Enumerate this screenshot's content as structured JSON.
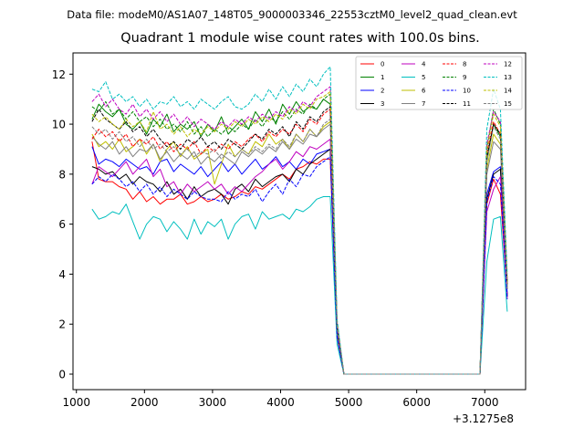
{
  "page": {
    "suptitle": "Data file: modeM0/AS1A07_148T05_9000003346_22553cztM0_level2_quad_clean.evt",
    "title": "Quadrant 1 module wise count rates with 100.0s bins.",
    "x_offset_label": "+3.1275e8"
  },
  "chart_data": {
    "type": "line",
    "title": "Quadrant 1 module wise count rates with 100.0s bins.",
    "xlabel": "",
    "ylabel": "",
    "x_offset": "+3.1275e8",
    "xlim": [
      950,
      7600
    ],
    "ylim": [
      -0.62,
      12.85
    ],
    "xticks": [
      1000,
      2000,
      3000,
      4000,
      5000,
      6000,
      7000
    ],
    "xtick_labels": [
      "1000",
      "2000",
      "3000",
      "4000",
      "5000",
      "6000",
      "7000"
    ],
    "yticks": [
      0,
      2,
      4,
      6,
      8,
      10,
      12
    ],
    "ytick_labels": [
      "0",
      "2",
      "4",
      "6",
      "8",
      "10",
      "12"
    ],
    "grid": false,
    "legend": {
      "placement": "top-right",
      "columns": 4
    },
    "x": [
      1230,
      1330,
      1430,
      1530,
      1630,
      1730,
      1830,
      1930,
      2030,
      2130,
      2230,
      2330,
      2430,
      2530,
      2630,
      2730,
      2830,
      2930,
      3030,
      3130,
      3230,
      3330,
      3430,
      3530,
      3630,
      3730,
      3830,
      3930,
      4030,
      4130,
      4230,
      4330,
      4430,
      4530,
      4630,
      4730,
      4830,
      4930,
      5030,
      5130,
      5230,
      5330,
      5430,
      5530,
      5630,
      5730,
      5830,
      5930,
      6030,
      6130,
      6230,
      6330,
      6430,
      6530,
      6630,
      6730,
      6830,
      6930,
      7030,
      7130,
      7230,
      7330
    ],
    "series": [
      {
        "name": "0",
        "color": "#ff0000",
        "dash": "solid",
        "values": [
          9.3,
          7.8,
          7.7,
          7.7,
          7.5,
          7.4,
          7.0,
          7.3,
          6.9,
          7.1,
          6.8,
          7.0,
          7.0,
          7.2,
          6.8,
          6.9,
          7.1,
          6.9,
          7.0,
          7.2,
          7.0,
          7.1,
          7.3,
          7.2,
          7.5,
          7.4,
          7.6,
          7.8,
          8.0,
          7.8,
          8.2,
          8.3,
          8.5,
          8.4,
          8.6,
          8.6,
          1.5,
          0.0,
          0.0,
          0.0,
          0.0,
          0.0,
          0.0,
          0.0,
          0.0,
          0.0,
          0.0,
          0.0,
          0.0,
          0.0,
          0.0,
          0.0,
          0.0,
          0.0,
          0.0,
          0.0,
          0.0,
          0.0,
          6.8,
          7.8,
          7.2,
          3.1
        ]
      },
      {
        "name": "1",
        "color": "#008000",
        "dash": "solid",
        "values": [
          10.2,
          10.8,
          10.5,
          10.3,
          10.6,
          10.0,
          9.8,
          10.1,
          9.6,
          10.2,
          9.9,
          10.4,
          9.7,
          10.0,
          9.8,
          10.1,
          9.5,
          10.0,
          9.7,
          10.3,
          9.6,
          9.9,
          10.2,
          9.8,
          10.5,
          10.1,
          10.6,
          10.0,
          10.8,
          10.4,
          10.9,
          10.5,
          10.7,
          10.6,
          11.0,
          10.8,
          2.0,
          0.0,
          0.0,
          0.0,
          0.0,
          0.0,
          0.0,
          0.0,
          0.0,
          0.0,
          0.0,
          0.0,
          0.0,
          0.0,
          0.0,
          0.0,
          0.0,
          0.0,
          0.0,
          0.0,
          0.0,
          0.0,
          8.5,
          10.0,
          9.5,
          3.4
        ]
      },
      {
        "name": "2",
        "color": "#0000ff",
        "dash": "solid",
        "values": [
          9.1,
          8.4,
          8.6,
          8.5,
          8.3,
          8.6,
          8.4,
          8.2,
          8.3,
          8.0,
          8.5,
          8.6,
          8.1,
          8.4,
          8.2,
          8.0,
          8.3,
          7.9,
          8.2,
          8.5,
          8.1,
          8.4,
          8.0,
          8.3,
          8.6,
          8.2,
          8.4,
          8.7,
          8.3,
          8.5,
          8.2,
          8.6,
          8.4,
          8.8,
          8.9,
          9.0,
          1.6,
          0.0,
          0.0,
          0.0,
          0.0,
          0.0,
          0.0,
          0.0,
          0.0,
          0.0,
          0.0,
          0.0,
          0.0,
          0.0,
          0.0,
          0.0,
          0.0,
          0.0,
          0.0,
          0.0,
          0.0,
          0.0,
          7.2,
          8.1,
          8.3,
          3.2
        ]
      },
      {
        "name": "3",
        "color": "#000000",
        "dash": "solid",
        "values": [
          8.3,
          8.2,
          8.0,
          8.1,
          7.8,
          8.0,
          7.6,
          7.9,
          7.7,
          7.6,
          7.3,
          7.7,
          7.2,
          7.4,
          7.0,
          7.5,
          7.1,
          7.3,
          7.4,
          7.2,
          6.8,
          7.4,
          7.6,
          7.3,
          7.8,
          7.5,
          7.7,
          7.9,
          8.0,
          7.7,
          8.2,
          8.0,
          8.4,
          8.6,
          8.8,
          9.0,
          1.6,
          0.0,
          0.0,
          0.0,
          0.0,
          0.0,
          0.0,
          0.0,
          0.0,
          0.0,
          0.0,
          0.0,
          0.0,
          0.0,
          0.0,
          0.0,
          0.0,
          0.0,
          0.0,
          0.0,
          0.0,
          0.0,
          7.0,
          8.0,
          8.2,
          3.1
        ]
      },
      {
        "name": "4",
        "color": "#bf00bf",
        "dash": "solid",
        "values": [
          7.6,
          8.3,
          8.1,
          7.9,
          8.2,
          8.5,
          8.0,
          8.3,
          8.6,
          7.9,
          8.2,
          7.5,
          7.7,
          7.2,
          7.6,
          7.3,
          7.5,
          7.7,
          7.4,
          7.6,
          7.2,
          7.5,
          7.3,
          7.6,
          7.9,
          8.1,
          8.4,
          8.6,
          8.2,
          8.5,
          8.9,
          8.7,
          9.1,
          9.0,
          9.2,
          9.4,
          1.7,
          0.0,
          0.0,
          0.0,
          0.0,
          0.0,
          0.0,
          0.0,
          0.0,
          0.0,
          0.0,
          0.0,
          0.0,
          0.0,
          0.0,
          0.0,
          0.0,
          0.0,
          0.0,
          0.0,
          0.0,
          0.0,
          6.5,
          7.4,
          7.9,
          3.0
        ]
      },
      {
        "name": "5",
        "color": "#00bfbf",
        "dash": "solid",
        "values": [
          6.6,
          6.2,
          6.3,
          6.5,
          6.4,
          6.8,
          6.1,
          5.4,
          6.0,
          6.3,
          6.2,
          5.7,
          6.1,
          5.8,
          5.4,
          6.2,
          5.6,
          6.1,
          5.9,
          6.2,
          5.4,
          6.0,
          6.3,
          6.4,
          5.8,
          6.5,
          6.2,
          6.3,
          6.4,
          6.2,
          6.6,
          6.5,
          6.7,
          7.0,
          7.1,
          7.1,
          1.2,
          0.0,
          0.0,
          0.0,
          0.0,
          0.0,
          0.0,
          0.0,
          0.0,
          0.0,
          0.0,
          0.0,
          0.0,
          0.0,
          0.0,
          0.0,
          0.0,
          0.0,
          0.0,
          0.0,
          0.0,
          0.0,
          4.5,
          6.2,
          6.3,
          2.5
        ]
      },
      {
        "name": "6",
        "color": "#bfbf00",
        "dash": "solid",
        "values": [
          9.6,
          9.1,
          9.3,
          9.0,
          9.4,
          8.9,
          9.1,
          9.4,
          8.8,
          9.2,
          8.5,
          9.0,
          9.3,
          8.7,
          9.1,
          8.6,
          8.8,
          9.0,
          7.6,
          8.4,
          9.2,
          8.7,
          9.0,
          8.8,
          9.3,
          9.1,
          9.6,
          9.2,
          9.4,
          9.0,
          9.6,
          9.3,
          9.8,
          9.5,
          9.9,
          10.1,
          1.8,
          0.0,
          0.0,
          0.0,
          0.0,
          0.0,
          0.0,
          0.0,
          0.0,
          0.0,
          0.0,
          0.0,
          0.0,
          0.0,
          0.0,
          0.0,
          0.0,
          0.0,
          0.0,
          0.0,
          0.0,
          0.0,
          8.2,
          9.6,
          9.2,
          3.5
        ]
      },
      {
        "name": "7",
        "color": "#808080",
        "dash": "solid",
        "values": [
          9.5,
          9.2,
          9.0,
          9.3,
          8.8,
          9.1,
          8.7,
          9.0,
          8.9,
          9.2,
          8.6,
          8.9,
          8.5,
          8.8,
          8.6,
          8.9,
          8.4,
          8.7,
          8.5,
          8.8,
          8.6,
          8.4,
          8.9,
          8.7,
          9.0,
          8.8,
          9.1,
          8.9,
          9.3,
          9.0,
          9.4,
          9.2,
          9.6,
          9.5,
          9.8,
          10.0,
          1.8,
          0.0,
          0.0,
          0.0,
          0.0,
          0.0,
          0.0,
          0.0,
          0.0,
          0.0,
          0.0,
          0.0,
          0.0,
          0.0,
          0.0,
          0.0,
          0.0,
          0.0,
          0.0,
          0.0,
          0.0,
          0.0,
          8.0,
          9.3,
          9.0,
          3.4
        ]
      },
      {
        "name": "8",
        "color": "#ff0000",
        "dash": "dashed",
        "values": [
          9.4,
          9.8,
          9.5,
          9.7,
          9.3,
          9.6,
          9.1,
          9.4,
          9.2,
          9.5,
          9.0,
          9.3,
          8.9,
          9.2,
          9.0,
          9.3,
          8.8,
          9.1,
          8.9,
          9.2,
          9.0,
          9.3,
          9.1,
          9.4,
          9.6,
          9.3,
          9.7,
          9.5,
          9.8,
          9.6,
          10.0,
          9.7,
          10.2,
          10.0,
          10.4,
          10.6,
          1.9,
          0.0,
          0.0,
          0.0,
          0.0,
          0.0,
          0.0,
          0.0,
          0.0,
          0.0,
          0.0,
          0.0,
          0.0,
          0.0,
          0.0,
          0.0,
          0.0,
          0.0,
          0.0,
          0.0,
          0.0,
          0.0,
          8.8,
          10.1,
          9.6,
          3.6
        ]
      },
      {
        "name": "9",
        "color": "#008000",
        "dash": "dashed",
        "values": [
          10.7,
          10.5,
          10.9,
          10.4,
          10.6,
          10.2,
          10.5,
          10.1,
          10.3,
          9.9,
          10.2,
          9.8,
          10.0,
          9.7,
          10.1,
          9.6,
          9.9,
          9.5,
          9.8,
          9.6,
          9.9,
          9.7,
          10.0,
          9.8,
          10.2,
          9.9,
          10.3,
          10.1,
          10.5,
          10.2,
          10.6,
          10.4,
          10.8,
          10.6,
          11.0,
          11.2,
          2.0,
          0.0,
          0.0,
          0.0,
          0.0,
          0.0,
          0.0,
          0.0,
          0.0,
          0.0,
          0.0,
          0.0,
          0.0,
          0.0,
          0.0,
          0.0,
          0.0,
          0.0,
          0.0,
          0.0,
          0.0,
          0.0,
          9.0,
          10.6,
          10.0,
          3.7
        ]
      },
      {
        "name": "10",
        "color": "#0000ff",
        "dash": "dashed",
        "values": [
          7.6,
          7.9,
          7.7,
          8.0,
          7.8,
          7.5,
          7.7,
          7.3,
          7.6,
          7.2,
          7.5,
          7.1,
          7.4,
          7.2,
          7.0,
          7.3,
          7.1,
          7.0,
          7.0,
          6.9,
          7.3,
          7.0,
          7.2,
          7.1,
          7.4,
          6.9,
          7.3,
          7.6,
          7.2,
          7.8,
          7.5,
          8.0,
          7.9,
          8.3,
          8.5,
          8.7,
          1.5,
          0.0,
          0.0,
          0.0,
          0.0,
          0.0,
          0.0,
          0.0,
          0.0,
          0.0,
          0.0,
          0.0,
          0.0,
          0.0,
          0.0,
          0.0,
          0.0,
          0.0,
          0.0,
          0.0,
          0.0,
          0.0,
          6.9,
          7.9,
          7.6,
          3.0
        ]
      },
      {
        "name": "11",
        "color": "#000000",
        "dash": "dashed",
        "values": [
          10.1,
          10.6,
          10.2,
          10.0,
          9.8,
          10.1,
          9.7,
          9.9,
          9.5,
          9.8,
          9.4,
          9.1,
          9.3,
          9.0,
          9.4,
          9.2,
          9.5,
          9.1,
          9.3,
          9.0,
          9.4,
          9.2,
          9.0,
          9.3,
          9.6,
          9.4,
          9.8,
          9.6,
          9.9,
          9.5,
          10.1,
          9.8,
          10.3,
          10.1,
          10.5,
          10.7,
          1.9,
          0.0,
          0.0,
          0.0,
          0.0,
          0.0,
          0.0,
          0.0,
          0.0,
          0.0,
          0.0,
          0.0,
          0.0,
          0.0,
          0.0,
          0.0,
          0.0,
          0.0,
          0.0,
          0.0,
          0.0,
          0.0,
          8.7,
          10.0,
          9.6,
          3.6
        ]
      },
      {
        "name": "12",
        "color": "#bf00bf",
        "dash": "dashed",
        "values": [
          10.9,
          11.2,
          10.7,
          11.0,
          10.6,
          10.4,
          10.8,
          10.3,
          10.6,
          10.2,
          10.5,
          10.1,
          10.4,
          10.0,
          10.3,
          9.9,
          10.2,
          10.0,
          9.8,
          10.1,
          9.9,
          10.2,
          10.0,
          10.3,
          10.1,
          10.4,
          10.2,
          10.5,
          10.3,
          10.7,
          10.5,
          10.9,
          10.7,
          11.1,
          11.3,
          11.5,
          2.1,
          0.0,
          0.0,
          0.0,
          0.0,
          0.0,
          0.0,
          0.0,
          0.0,
          0.0,
          0.0,
          0.0,
          0.0,
          0.0,
          0.0,
          0.0,
          0.0,
          0.0,
          0.0,
          0.0,
          0.0,
          0.0,
          9.2,
          10.5,
          10.1,
          3.8
        ]
      },
      {
        "name": "13",
        "color": "#00bfbf",
        "dash": "dashed",
        "values": [
          11.4,
          11.3,
          11.7,
          11.0,
          11.2,
          10.9,
          11.1,
          10.7,
          11.0,
          10.6,
          10.9,
          10.8,
          11.1,
          10.7,
          10.9,
          10.6,
          11.0,
          10.8,
          10.6,
          10.9,
          11.1,
          10.7,
          10.6,
          10.8,
          11.2,
          10.9,
          11.4,
          11.0,
          11.5,
          11.1,
          11.6,
          11.3,
          11.8,
          11.5,
          12.0,
          12.3,
          2.2,
          0.0,
          0.0,
          0.0,
          0.0,
          0.0,
          0.0,
          0.0,
          0.0,
          0.0,
          0.0,
          0.0,
          0.0,
          0.0,
          0.0,
          0.0,
          0.0,
          0.0,
          0.0,
          0.0,
          0.0,
          0.0,
          9.8,
          11.4,
          10.6,
          4.0
        ]
      },
      {
        "name": "14",
        "color": "#bfbf00",
        "dash": "dashed",
        "values": [
          10.4,
          10.1,
          10.3,
          10.0,
          9.8,
          10.2,
          9.9,
          10.1,
          9.7,
          10.5,
          9.8,
          10.0,
          9.6,
          9.9,
          9.5,
          9.8,
          9.6,
          9.9,
          9.7,
          10.0,
          9.8,
          10.1,
          9.9,
          10.2,
          10.0,
          10.3,
          10.1,
          10.4,
          10.2,
          10.6,
          10.4,
          10.8,
          10.6,
          11.0,
          11.1,
          11.3,
          2.0,
          0.0,
          0.0,
          0.0,
          0.0,
          0.0,
          0.0,
          0.0,
          0.0,
          0.0,
          0.0,
          0.0,
          0.0,
          0.0,
          0.0,
          0.0,
          0.0,
          0.0,
          0.0,
          0.0,
          0.0,
          0.0,
          9.0,
          10.4,
          9.9,
          3.7
        ]
      },
      {
        "name": "15",
        "color": "#808080",
        "dash": "dashed",
        "values": [
          9.9,
          9.6,
          9.8,
          9.4,
          9.7,
          9.3,
          9.5,
          9.1,
          9.4,
          9.0,
          9.2,
          8.9,
          9.1,
          8.8,
          9.0,
          8.7,
          8.9,
          8.8,
          9.0,
          8.6,
          8.9,
          8.7,
          9.0,
          8.8,
          9.1,
          8.9,
          9.2,
          9.0,
          9.4,
          9.1,
          9.6,
          9.3,
          9.8,
          9.5,
          10.0,
          10.2,
          1.9,
          0.0,
          0.0,
          0.0,
          0.0,
          0.0,
          0.0,
          0.0,
          0.0,
          0.0,
          0.0,
          0.0,
          0.0,
          0.0,
          0.0,
          0.0,
          0.0,
          0.0,
          0.0,
          0.0,
          0.0,
          0.0,
          8.5,
          9.9,
          9.4,
          3.5
        ]
      }
    ]
  }
}
